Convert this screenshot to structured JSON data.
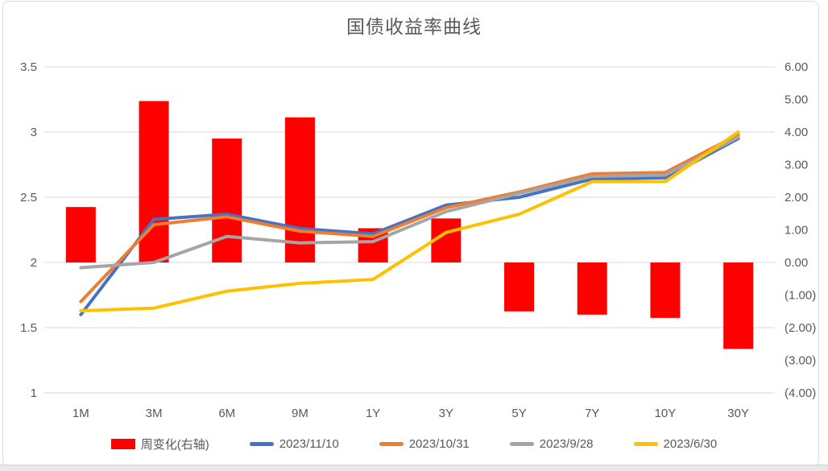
{
  "title": "国债收益率曲线",
  "colors": {
    "gridline": "#D9D9D9",
    "axis_text": "#595959",
    "negative_label": "#FF0000",
    "frame_border": "#D9D9D9",
    "bottom_strip": "#E8E8E8"
  },
  "chart_data": {
    "type": "combo-bar-line",
    "title": "国债收益率曲线",
    "categories": [
      "1M",
      "3M",
      "6M",
      "9M",
      "1Y",
      "3Y",
      "5Y",
      "7Y",
      "10Y",
      "30Y"
    ],
    "bar_series": {
      "name": "周变化(右轴)",
      "axis": "right",
      "color": "#FF0000",
      "values": [
        1.7,
        4.95,
        3.8,
        4.45,
        1.05,
        1.35,
        -1.5,
        -1.6,
        -1.7,
        -2.65
      ]
    },
    "line_series": [
      {
        "name": "2023/11/10",
        "axis": "left",
        "color": "#4472C4",
        "values": [
          1.6,
          2.33,
          2.37,
          2.26,
          2.22,
          2.44,
          2.5,
          2.64,
          2.65,
          2.95
        ]
      },
      {
        "name": "2023/10/31",
        "axis": "left",
        "color": "#ED7D31",
        "values": [
          1.7,
          2.29,
          2.35,
          2.24,
          2.2,
          2.42,
          2.54,
          2.68,
          2.69,
          2.98
        ]
      },
      {
        "name": "2023/9/28",
        "axis": "left",
        "color": "#A5A5A5",
        "values": [
          1.96,
          2.0,
          2.2,
          2.15,
          2.16,
          2.39,
          2.53,
          2.66,
          2.67,
          2.96
        ]
      },
      {
        "name": "2023/6/30",
        "axis": "left",
        "color": "#FFC000",
        "values": [
          1.63,
          1.65,
          1.78,
          1.84,
          1.87,
          2.23,
          2.37,
          2.62,
          2.62,
          3.0
        ]
      }
    ],
    "left_axis": {
      "min": 1,
      "max": 3.5,
      "ticks": [
        "3.5",
        "3",
        "2.5",
        "2",
        "1.5",
        "1"
      ]
    },
    "right_axis": {
      "min": -4,
      "max": 6,
      "ticks": [
        "6.00",
        "5.00",
        "4.00",
        "3.00",
        "2.00",
        "1.00",
        "0.00",
        "(1.00)",
        "(2.00)",
        "(3.00)",
        "(4.00)"
      ],
      "negative_color": "#FF0000"
    },
    "legend_position": "bottom",
    "grid": "horizontal"
  }
}
